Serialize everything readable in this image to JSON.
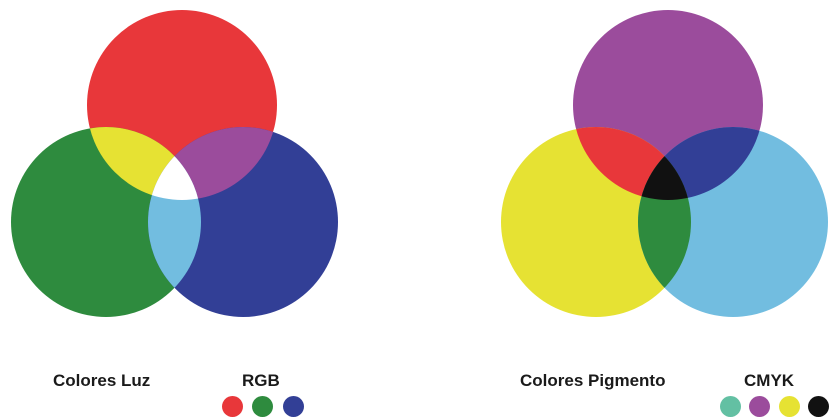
{
  "rgb": {
    "label": "Colores Luz",
    "model": "RGB",
    "colors": {
      "red": "#e8373a",
      "green": "#2e8b3e",
      "blue": "#323f96",
      "yellow": "#e6e233",
      "magenta": "#9b4c9c",
      "cyan": "#72bde0",
      "white": "#ffffff"
    },
    "swatches": [
      "#e8373a",
      "#2e8b3e",
      "#323f96"
    ]
  },
  "cmyk": {
    "label": "Colores Pigmento",
    "model": "CMYK",
    "colors": {
      "magenta": "#9b4c9c",
      "yellow": "#e6e233",
      "cyan": "#72bde0",
      "red": "#e8373a",
      "blue": "#323f96",
      "green": "#2e8b3e",
      "black": "#111111"
    },
    "swatches": [
      "#63c0a3",
      "#9b4c9c",
      "#e6e233",
      "#111111"
    ]
  }
}
